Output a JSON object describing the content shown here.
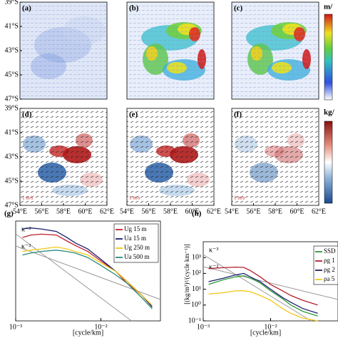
{
  "chart_data": [
    {
      "type": "map",
      "label": "(a)",
      "xlim": [
        54,
        62
      ],
      "ylim": [
        -47,
        -39
      ],
      "style": "speed-light",
      "yticks": [
        {
          "value": -39,
          "label": "39°S"
        },
        {
          "value": -41,
          "label": "41°S"
        },
        {
          "value": -43,
          "label": "43°S"
        },
        {
          "value": -45,
          "label": "45°S"
        },
        {
          "value": -47,
          "label": "47°S"
        }
      ]
    },
    {
      "type": "map",
      "label": "(b)",
      "xlim": [
        54,
        62
      ],
      "ylim": [
        -47,
        -39
      ],
      "style": "speed"
    },
    {
      "type": "map",
      "label": "(c)",
      "xlim": [
        54,
        62
      ],
      "ylim": [
        -47,
        -39
      ],
      "style": "speed"
    },
    {
      "type": "map",
      "label": "(d)",
      "xlim": [
        54,
        62
      ],
      "ylim": [
        -47,
        -39
      ],
      "style": "density",
      "scale_label": "1 m/s",
      "yticks": [
        {
          "value": -39,
          "label": "39°S"
        },
        {
          "value": -41,
          "label": "41°S"
        },
        {
          "value": -43,
          "label": "43°S"
        },
        {
          "value": -45,
          "label": "45°S"
        },
        {
          "value": -47,
          "label": "47°S"
        }
      ],
      "xticks": [
        {
          "value": 54,
          "label": "54°E"
        },
        {
          "value": 56,
          "label": "56°E"
        },
        {
          "value": 58,
          "label": "58°E"
        },
        {
          "value": 60,
          "label": "60°E"
        },
        {
          "value": 62,
          "label": "62°E"
        }
      ]
    },
    {
      "type": "map",
      "label": "(e)",
      "xlim": [
        54,
        62
      ],
      "ylim": [
        -47,
        -39
      ],
      "style": "density",
      "scale_label": "1 m/s",
      "xticks": [
        {
          "value": 54,
          "label": "54°E"
        },
        {
          "value": 56,
          "label": "56°E"
        },
        {
          "value": 58,
          "label": "58°E"
        },
        {
          "value": 60,
          "label": "60°E"
        },
        {
          "value": 62,
          "label": "62°E"
        }
      ]
    },
    {
      "type": "map",
      "label": "(f)",
      "xlim": [
        54,
        62
      ],
      "ylim": [
        -47,
        -39
      ],
      "style": "density-light",
      "scale_label": "1 m/s",
      "xticks": [
        {
          "value": 54,
          "label": "54°E"
        },
        {
          "value": 56,
          "label": "56°E"
        },
        {
          "value": 58,
          "label": "58°E"
        },
        {
          "value": 60,
          "label": "60°E"
        },
        {
          "value": 62,
          "label": "62°E"
        }
      ]
    },
    {
      "type": "line",
      "label": "(g)",
      "xlabel": "[cycle/km]",
      "xlog": true,
      "ylog": true,
      "xlim": [
        0.001,
        0.05
      ],
      "ylim": [
        0.0001,
        10
      ],
      "xticks": [
        {
          "value": 0.001,
          "label": "10⁻³"
        },
        {
          "value": 0.01,
          "label": "10⁻²"
        }
      ],
      "annotations": [
        "κ⁻³",
        "κ⁻²"
      ],
      "x": [
        0.0012,
        0.0015,
        0.002,
        0.003,
        0.004,
        0.005,
        0.007,
        0.01,
        0.015,
        0.02,
        0.03,
        0.04
      ],
      "series": [
        {
          "name": "Ug 15 m",
          "color": "#c0202a",
          "values": [
            1.5,
            2,
            2.2,
            2,
            1,
            0.6,
            0.3,
            0.1,
            0.03,
            0.008,
            0.002,
            0.0005
          ]
        },
        {
          "name": "Ua 15 m",
          "color": "#1a1f6e",
          "values": [
            4,
            4.5,
            4,
            3,
            1.5,
            0.8,
            0.4,
            0.12,
            0.03,
            0.01,
            0.002,
            0.0005
          ]
        },
        {
          "name": "Ug 250 m",
          "color": "#f2c81a",
          "values": [
            0.3,
            0.35,
            0.4,
            0.5,
            0.4,
            0.3,
            0.2,
            0.08,
            0.03,
            0.01,
            0.002,
            0.0006
          ]
        },
        {
          "name": "Ua 500 m",
          "color": "#2a8a7a",
          "values": [
            0.2,
            0.25,
            0.3,
            0.35,
            0.3,
            0.25,
            0.15,
            0.06,
            0.02,
            0.008,
            0.0015,
            0.0004
          ]
        }
      ]
    },
    {
      "type": "line",
      "label": "(h)",
      "xlabel": "[cycle/km]",
      "ylabel": "[(kg/m³)²/(cycle km⁻¹)]",
      "xlog": true,
      "ylog": true,
      "xlim": [
        0.001,
        0.1
      ],
      "ylim": [
        0.1,
        10000
      ],
      "xticks": [
        {
          "value": 0.001,
          "label": "10⁻³"
        },
        {
          "value": 0.01,
          "label": "10⁻²"
        }
      ],
      "yticks": [
        {
          "value": 0.1,
          "label": "10⁻¹"
        },
        {
          "value": 1,
          "label": "10⁰"
        },
        {
          "value": 10,
          "label": "10¹"
        },
        {
          "value": 100,
          "label": "10²"
        },
        {
          "value": 1000,
          "label": "10³"
        }
      ],
      "annotations": [
        "κ⁻³",
        "κ⁻²"
      ],
      "x": [
        0.0012,
        0.002,
        0.003,
        0.004,
        0.005,
        0.007,
        0.01,
        0.015,
        0.02,
        0.03,
        0.05
      ],
      "series": [
        {
          "name": "SSD",
          "color": "#2e9a3a",
          "values": [
            20,
            40,
            60,
            70,
            50,
            25,
            8,
            2.5,
            1,
            0.4,
            0.2
          ]
        },
        {
          "name": "ρg 1",
          "color": "#b02030",
          "values": [
            200,
            230,
            250,
            240,
            150,
            60,
            20,
            8,
            4,
            2,
            1
          ]
        },
        {
          "name": "ρg 2",
          "color": "#1a1f6e",
          "values": [
            30,
            50,
            80,
            100,
            60,
            30,
            10,
            3,
            1.5,
            0.6,
            0.3
          ]
        },
        {
          "name": "ρa 5",
          "color": "#f2c81a",
          "values": [
            5,
            6,
            8,
            8,
            7,
            4,
            2,
            0.6,
            0.3,
            0.15,
            0.1
          ]
        }
      ]
    }
  ],
  "colorbars": [
    {
      "label": "m/"
    },
    {
      "label": "kg/"
    }
  ]
}
